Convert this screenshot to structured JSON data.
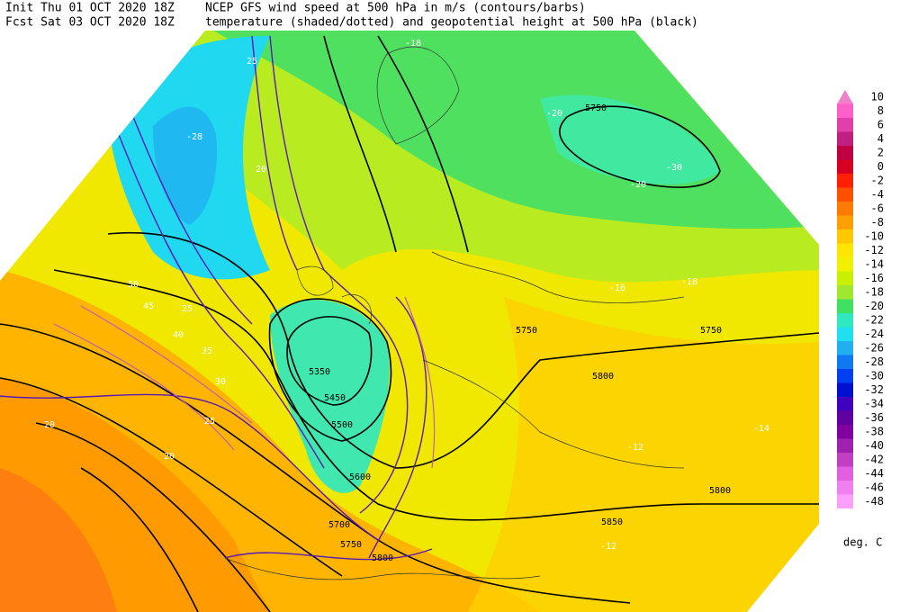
{
  "header": {
    "init": "Init  Thu 01 OCT 2020 18Z",
    "line1": "NCEP GFS wind speed at 500 hPa in m/s (contours/barbs)",
    "forecast": "Fcst Sat 03 OCT 2020 18Z",
    "line2": "temperature (shaded/dotted) and geopotential height at 500 hPa (black)"
  },
  "map": {
    "labels": [
      "5750",
      "5750",
      "5750",
      "5800",
      "5800",
      "5850",
      "5350",
      "5450",
      "5500",
      "5600",
      "5700",
      "5750",
      "5800",
      "-20",
      "-30",
      "-20",
      "-28",
      "-16",
      "-18",
      "-14",
      "-12",
      "-12",
      "-18",
      "20",
      "25",
      "25",
      "30",
      "35",
      "40",
      "45",
      "50",
      "20",
      "25",
      "20"
    ]
  },
  "colorbar": {
    "unit": "deg. C",
    "levels": [
      10,
      8,
      6,
      4,
      2,
      0,
      -2,
      -4,
      -6,
      -8,
      -10,
      -12,
      -14,
      -16,
      -18,
      -20,
      -22,
      -24,
      -26,
      -28,
      -30,
      -32,
      -34,
      -36,
      -38,
      -40,
      -42,
      -44,
      -46,
      -48
    ],
    "colors": [
      "#f080c8",
      "#ff60c8",
      "#e040a8",
      "#c02080",
      "#c00040",
      "#d80020",
      "#ff2000",
      "#ff5000",
      "#ff7a00",
      "#ffa000",
      "#ffc800",
      "#ffe600",
      "#f0f000",
      "#c8f000",
      "#a0e830",
      "#40e060",
      "#30e8c0",
      "#20e0f0",
      "#20b0f0",
      "#1078f0",
      "#0040f0",
      "#0010d0",
      "#4000c0",
      "#6000a0",
      "#8000a0",
      "#a020b0",
      "#c040c0",
      "#e060e0",
      "#f080f0",
      "#ffa0ff"
    ]
  }
}
